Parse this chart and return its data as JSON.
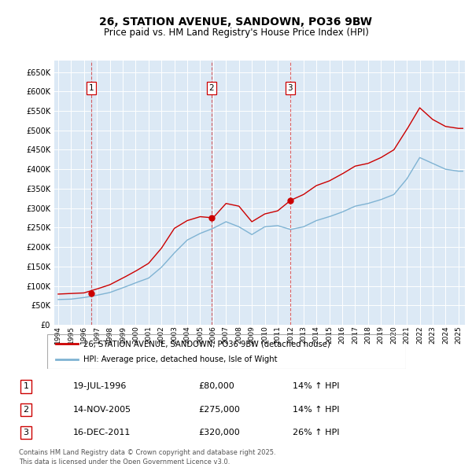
{
  "title": "26, STATION AVENUE, SANDOWN, PO36 9BW",
  "subtitle": "Price paid vs. HM Land Registry's House Price Index (HPI)",
  "transactions": [
    {
      "num": 1,
      "date_label": "19-JUL-1996",
      "price": 80000,
      "hpi_pct": "14% ↑ HPI",
      "date_x": 1996.55
    },
    {
      "num": 2,
      "date_label": "14-NOV-2005",
      "price": 275000,
      "hpi_pct": "14% ↑ HPI",
      "date_x": 2005.87
    },
    {
      "num": 3,
      "date_label": "16-DEC-2011",
      "price": 320000,
      "hpi_pct": "26% ↑ HPI",
      "date_x": 2011.96
    }
  ],
  "ylim": [
    0,
    680000
  ],
  "xlim_start": 1993.7,
  "xlim_end": 2025.5,
  "yticks": [
    0,
    50000,
    100000,
    150000,
    200000,
    250000,
    300000,
    350000,
    400000,
    450000,
    500000,
    550000,
    600000,
    650000
  ],
  "ytick_labels": [
    "£0",
    "£50K",
    "£100K",
    "£150K",
    "£200K",
    "£250K",
    "£300K",
    "£350K",
    "£400K",
    "£450K",
    "£500K",
    "£550K",
    "£600K",
    "£650K"
  ],
  "xticks": [
    1994,
    1995,
    1996,
    1997,
    1998,
    1999,
    2000,
    2001,
    2002,
    2003,
    2004,
    2005,
    2006,
    2007,
    2008,
    2009,
    2010,
    2011,
    2012,
    2013,
    2014,
    2015,
    2016,
    2017,
    2018,
    2019,
    2020,
    2021,
    2022,
    2023,
    2024,
    2025
  ],
  "legend_property_label": "26, STATION AVENUE, SANDOWN, PO36 9BW (detached house)",
  "legend_hpi_label": "HPI: Average price, detached house, Isle of Wight",
  "property_line_color": "#cc0000",
  "hpi_line_color": "#7fb3d3",
  "background_color": "#dce9f5",
  "grid_color": "#ffffff",
  "footnote": "Contains HM Land Registry data © Crown copyright and database right 2025.\nThis data is licensed under the Open Government Licence v3.0.",
  "hpi_yearly": {
    "1994": 65000,
    "1995": 66000,
    "1996": 70000,
    "1997": 76000,
    "1998": 83000,
    "1999": 95000,
    "2000": 108000,
    "2001": 120000,
    "2002": 148000,
    "2003": 185000,
    "2004": 218000,
    "2005": 235000,
    "2006": 248000,
    "2007": 265000,
    "2008": 252000,
    "2009": 232000,
    "2010": 252000,
    "2011": 255000,
    "2012": 245000,
    "2013": 252000,
    "2014": 268000,
    "2015": 278000,
    "2016": 290000,
    "2017": 305000,
    "2018": 312000,
    "2019": 322000,
    "2020": 335000,
    "2021": 375000,
    "2022": 430000,
    "2023": 415000,
    "2024": 400000,
    "2025": 395000
  },
  "prop_yearly": {
    "1994": 79000,
    "1995": 80500,
    "1996": 82000,
    "1997": 92000,
    "1998": 103000,
    "1999": 120000,
    "2000": 138000,
    "2001": 158000,
    "2002": 197000,
    "2003": 248000,
    "2004": 268000,
    "2005": 278000,
    "2006": 275000,
    "2007": 312000,
    "2008": 305000,
    "2009": 265000,
    "2010": 285000,
    "2011": 293000,
    "2012": 320000,
    "2013": 335000,
    "2014": 358000,
    "2015": 370000,
    "2016": 388000,
    "2017": 408000,
    "2018": 415000,
    "2019": 430000,
    "2020": 450000,
    "2021": 502000,
    "2022": 558000,
    "2023": 528000,
    "2024": 510000,
    "2025": 505000
  }
}
